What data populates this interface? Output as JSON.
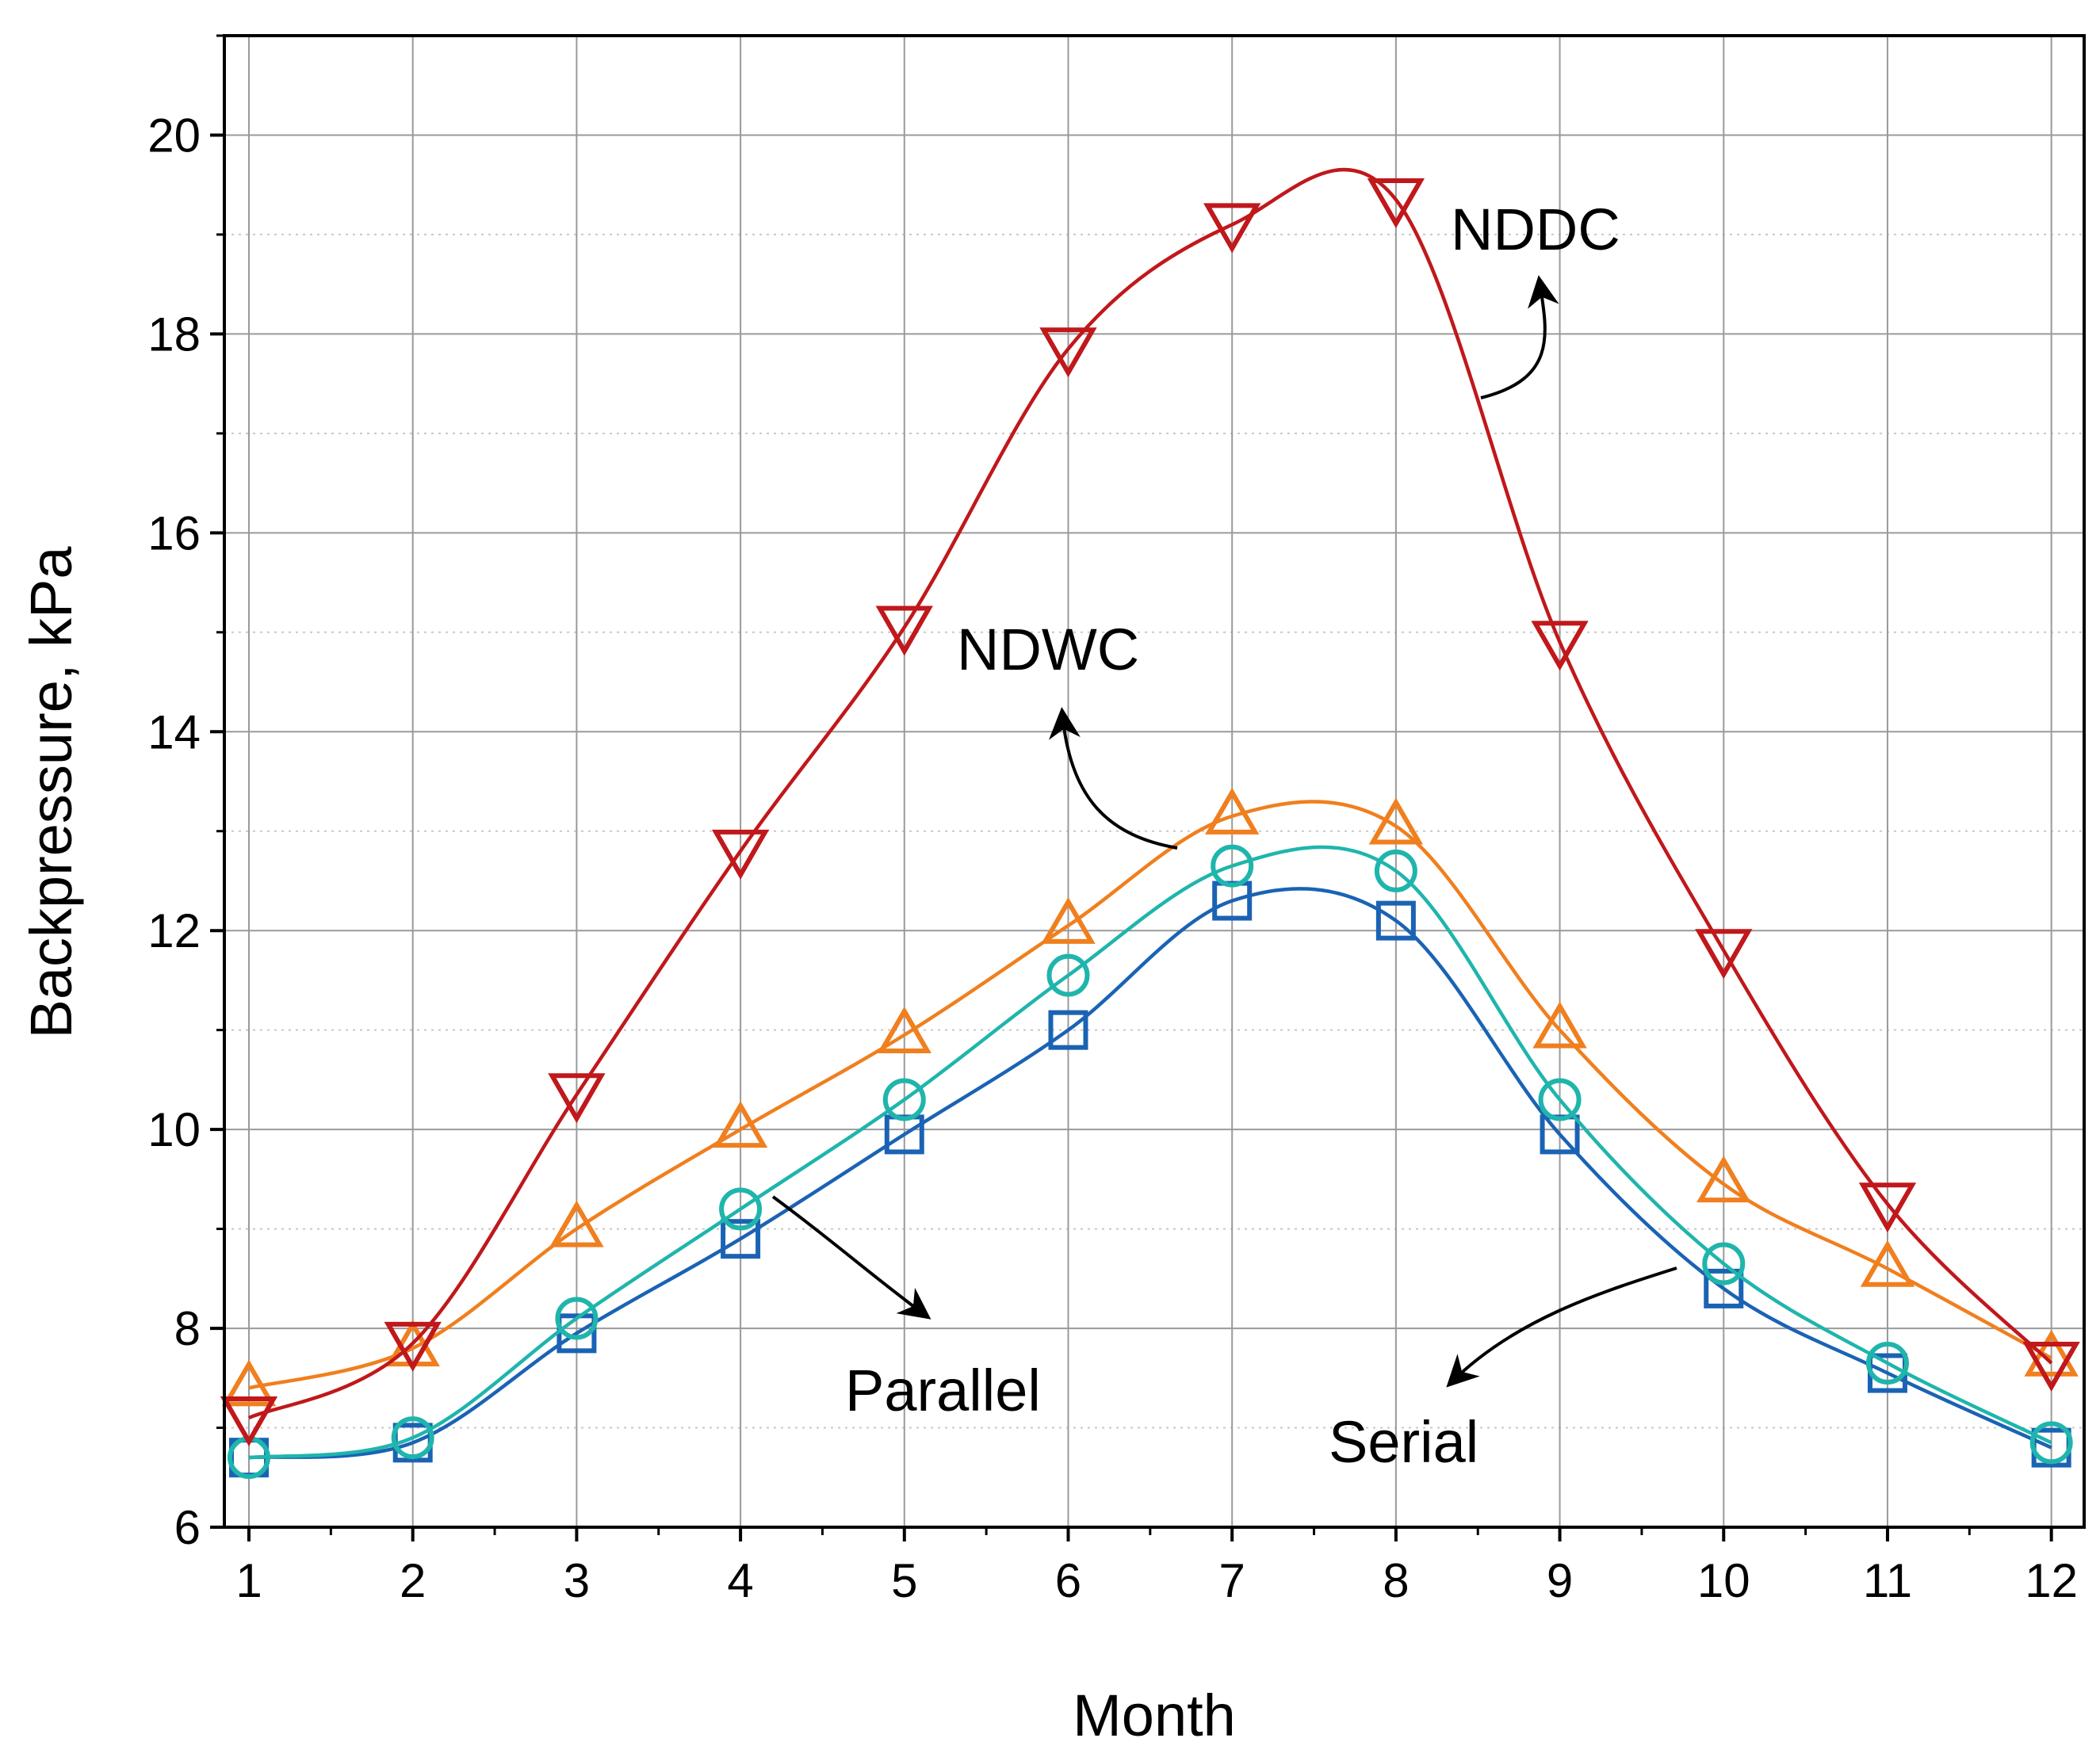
{
  "chart_data": {
    "type": "line",
    "title": "",
    "xlabel": "Month",
    "ylabel": "Backpressure, kPa",
    "xlim": [
      0.85,
      12.2
    ],
    "ylim": [
      6,
      21
    ],
    "grid": true,
    "categories": [
      1,
      2,
      3,
      4,
      5,
      6,
      7,
      8,
      9,
      10,
      11,
      12
    ],
    "xticks": [
      "1",
      "2",
      "3",
      "4",
      "5",
      "6",
      "7",
      "8",
      "9",
      "10",
      "11",
      "12"
    ],
    "yticks": [
      "6",
      "8",
      "10",
      "12",
      "14",
      "16",
      "18",
      "20"
    ],
    "series": [
      {
        "name": "NDDC",
        "marker": "triangle-down",
        "color": "#c0181b",
        "values": [
          7.1,
          7.85,
          10.35,
          12.8,
          15.05,
          17.85,
          19.1,
          19.35,
          14.9,
          11.8,
          9.25,
          7.65
        ]
      },
      {
        "name": "NDWC",
        "marker": "triangle-up",
        "color": "#f07f1e",
        "values": [
          7.4,
          7.8,
          9.0,
          10.0,
          10.95,
          12.05,
          13.15,
          13.05,
          11.0,
          9.45,
          8.6,
          7.7
        ]
      },
      {
        "name": "Parallel",
        "marker": "circle",
        "color": "#1fb5ac",
        "values": [
          6.7,
          6.9,
          8.1,
          9.2,
          10.3,
          11.55,
          12.65,
          12.6,
          10.3,
          8.65,
          7.65,
          6.85
        ]
      },
      {
        "name": "Serial",
        "marker": "square",
        "color": "#1a63b4",
        "values": [
          6.7,
          6.85,
          7.95,
          8.9,
          9.95,
          11.0,
          12.3,
          12.1,
          9.95,
          8.4,
          7.55,
          6.8
        ]
      }
    ],
    "annotations": [
      {
        "text": "NDDC",
        "series": "NDDC"
      },
      {
        "text": "NDWC",
        "series": "NDWC"
      },
      {
        "text": "Parallel",
        "series": "Parallel"
      },
      {
        "text": "Serial",
        "series": "Serial"
      }
    ]
  }
}
